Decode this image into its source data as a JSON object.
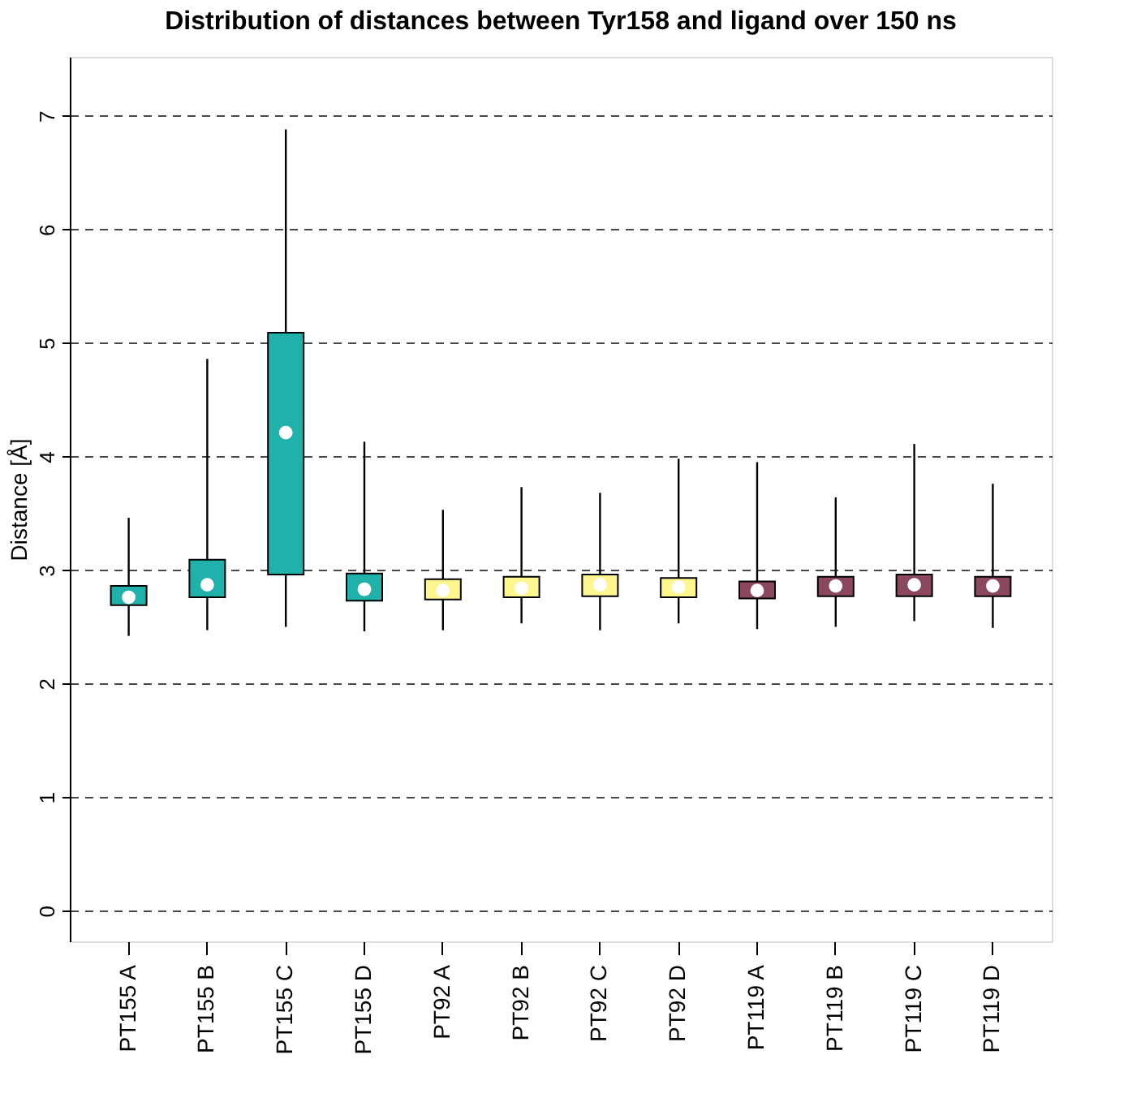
{
  "chart_data": {
    "type": "box",
    "title": "Distribution of distances between Tyr158 and ligand over 150 ns",
    "ylabel": "Distance [Å]",
    "categories": [
      "PT155 A",
      "PT155 B",
      "PT155 C",
      "PT155 D",
      "PT92 A",
      "PT92 B",
      "PT92 C",
      "PT92 D",
      "PT119 A",
      "PT119 B",
      "PT119 C",
      "PT119 D"
    ],
    "colors": [
      "#20b2aa",
      "#20b2aa",
      "#20b2aa",
      "#20b2aa",
      "#fff68f",
      "#fff68f",
      "#fff68f",
      "#fff68f",
      "#8b475d",
      "#8b475d",
      "#8b475d",
      "#8b475d"
    ],
    "boxes": [
      {
        "low": 2.42,
        "q1": 2.69,
        "median": 2.76,
        "q3": 2.86,
        "high": 3.46
      },
      {
        "low": 2.47,
        "q1": 2.76,
        "median": 2.87,
        "q3": 3.09,
        "high": 4.86
      },
      {
        "low": 2.5,
        "q1": 2.96,
        "median": 4.21,
        "q3": 5.09,
        "high": 6.88
      },
      {
        "low": 2.46,
        "q1": 2.73,
        "median": 2.83,
        "q3": 2.97,
        "high": 4.13
      },
      {
        "low": 2.47,
        "q1": 2.74,
        "median": 2.82,
        "q3": 2.92,
        "high": 3.53
      },
      {
        "low": 2.53,
        "q1": 2.76,
        "median": 2.84,
        "q3": 2.94,
        "high": 3.73
      },
      {
        "low": 2.47,
        "q1": 2.77,
        "median": 2.87,
        "q3": 2.96,
        "high": 3.68
      },
      {
        "low": 2.53,
        "q1": 2.76,
        "median": 2.85,
        "q3": 2.93,
        "high": 3.98
      },
      {
        "low": 2.48,
        "q1": 2.75,
        "median": 2.82,
        "q3": 2.9,
        "high": 3.95
      },
      {
        "low": 2.5,
        "q1": 2.77,
        "median": 2.86,
        "q3": 2.94,
        "high": 3.64
      },
      {
        "low": 2.55,
        "q1": 2.77,
        "median": 2.87,
        "q3": 2.96,
        "high": 4.11
      },
      {
        "low": 2.49,
        "q1": 2.77,
        "median": 2.86,
        "q3": 2.94,
        "high": 3.76
      }
    ],
    "ylim": [
      -0.27,
      7.52
    ],
    "yticks": [
      0,
      1,
      2,
      3,
      4,
      5,
      6,
      7
    ],
    "grid": "y",
    "line_style": "dashed"
  }
}
